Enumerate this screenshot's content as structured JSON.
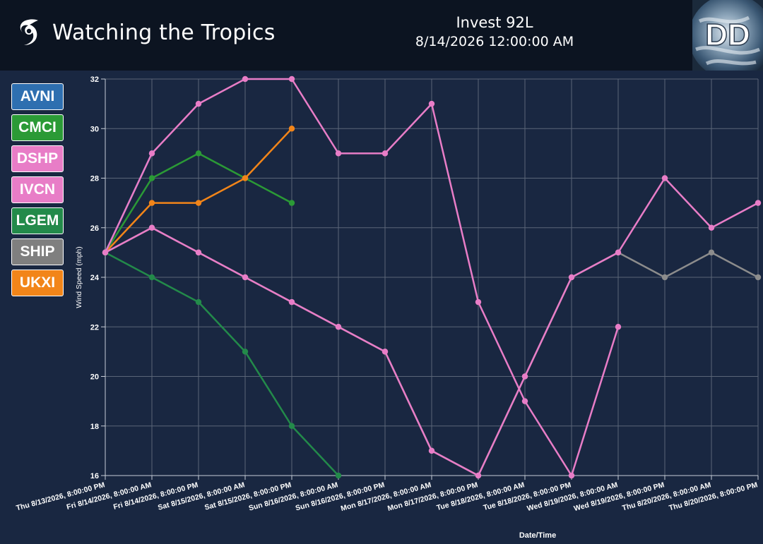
{
  "header": {
    "app_title": "Watching the Tropics",
    "storm_name": "Invest 92L",
    "storm_time": "8/14/2026 12:00:00 AM"
  },
  "colors": {
    "header_bg": "#0c1421",
    "plot_bg": "#192741",
    "grid": "#5a6578"
  },
  "legend": {
    "items": [
      {
        "label": "AVNI",
        "color": "#2e6fb0"
      },
      {
        "label": "CMCI",
        "color": "#2b9a36"
      },
      {
        "label": "DSHP",
        "color": "#e87dc7"
      },
      {
        "label": "IVCN",
        "color": "#e87dc7"
      },
      {
        "label": "LGEM",
        "color": "#238a4a"
      },
      {
        "label": "SHIP",
        "color": "#7f7f7f"
      },
      {
        "label": "UKXI",
        "color": "#f28519"
      }
    ]
  },
  "chart_data": {
    "type": "line",
    "xlabel": "Date/Time",
    "ylabel": "Wind Speed (mph)",
    "ylim": [
      16,
      32
    ],
    "yticks": [
      16,
      18,
      20,
      22,
      24,
      26,
      28,
      30,
      32
    ],
    "grid": true,
    "categories": [
      "Thu 8/13/2026, 8:00:00 PM",
      "Fri 8/14/2026, 8:00:00 AM",
      "Fri 8/14/2026, 8:00:00 PM",
      "Sat 8/15/2026, 8:00:00 AM",
      "Sat 8/15/2026, 8:00:00 PM",
      "Sun 8/16/2026, 8:00:00 AM",
      "Sun 8/16/2026, 8:00:00 PM",
      "Mon 8/17/2026, 8:00:00 AM",
      "Mon 8/17/2026, 8:00:00 PM",
      "Tue 8/18/2026, 8:00:00 AM",
      "Tue 8/18/2026, 8:00:00 PM",
      "Wed 8/19/2026, 8:00:00 AM",
      "Wed 8/19/2026, 8:00:00 PM",
      "Thu 8/20/2026, 8:00:00 AM",
      "Thu 8/20/2026, 8:00:00 PM"
    ],
    "series": [
      {
        "name": "SHIP",
        "color": "#8c8c8c",
        "values": [
          25,
          26,
          25,
          24,
          23,
          22,
          21,
          17,
          16,
          20,
          24,
          25,
          24,
          25,
          24
        ]
      },
      {
        "name": "LGEM",
        "color": "#238a4a",
        "values": [
          25,
          24,
          23,
          21,
          18,
          16,
          null,
          null,
          null,
          null,
          null,
          null,
          null,
          null,
          null
        ]
      },
      {
        "name": "CMCI",
        "color": "#2b9a36",
        "values": [
          25,
          28,
          29,
          28,
          27,
          null,
          null,
          null,
          null,
          null,
          null,
          null,
          null,
          null,
          null
        ]
      },
      {
        "name": "UKXI",
        "color": "#f28519",
        "values": [
          25,
          27,
          27,
          28,
          30,
          null,
          null,
          null,
          null,
          null,
          null,
          null,
          null,
          null,
          null
        ]
      },
      {
        "name": "AVNI",
        "color": "#2e6fb0",
        "values": [
          25,
          29,
          null,
          null,
          null,
          null,
          null,
          null,
          null,
          null,
          null,
          null,
          null,
          null,
          null
        ]
      },
      {
        "name": "DSHP",
        "color": "#e87dc7",
        "values": [
          25,
          26,
          25,
          24,
          23,
          22,
          21,
          17,
          16,
          20,
          24,
          25,
          28,
          26,
          27
        ]
      },
      {
        "name": "IVCN",
        "color": "#e87dc7",
        "values": [
          25,
          29,
          31,
          32,
          32,
          29,
          29,
          31,
          23,
          19,
          16,
          22,
          null,
          null,
          null
        ]
      }
    ]
  }
}
